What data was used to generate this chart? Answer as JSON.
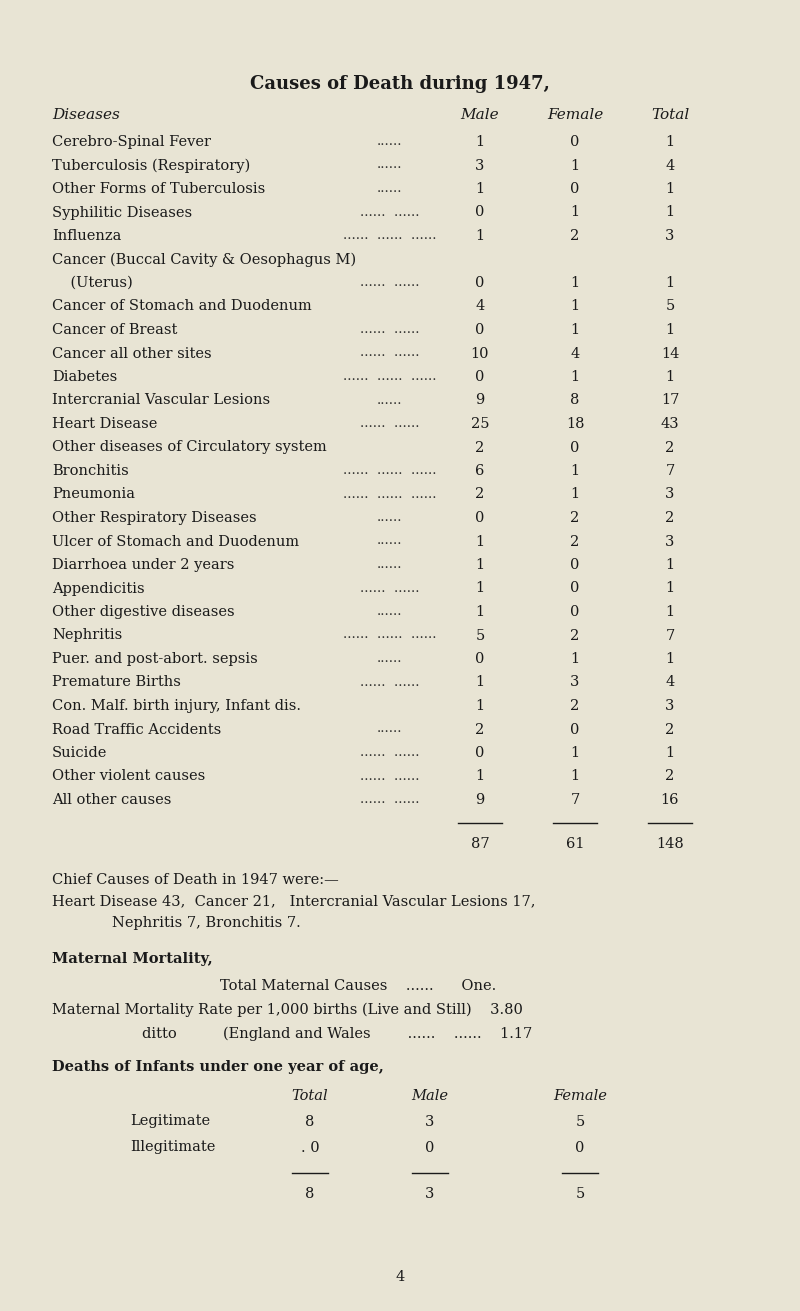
{
  "title": "Causes of Death during 1947,",
  "bg_color": "#e8e4d4",
  "text_color": "#1a1a1a",
  "table_data": [
    {
      "disease": "Cerebro-Spinal Fever",
      "dots": "......",
      "male": "1",
      "female": "0",
      "total": "1"
    },
    {
      "disease": "Tuberculosis (Respiratory)",
      "dots": "......",
      "male": "3",
      "female": "1",
      "total": "4"
    },
    {
      "disease": "Other Forms of Tuberculosis",
      "dots": "......",
      "male": "1",
      "female": "0",
      "total": "1"
    },
    {
      "disease": "Syphilitic Diseases",
      "dots": "......  ......",
      "male": "0",
      "female": "1",
      "total": "1"
    },
    {
      "disease": "Influenza",
      "dots": "......  ......  ......",
      "male": "1",
      "female": "2",
      "total": "3"
    },
    {
      "disease": "Cancer (Buccal Cavity & Oesophagus M)",
      "dots": "",
      "male": "",
      "female": "",
      "total": ""
    },
    {
      "disease": "    (Uterus)",
      "dots": "......  ......",
      "male": "0",
      "female": "1",
      "total": "1"
    },
    {
      "disease": "Cancer of Stomach and Duodenum",
      "dots": "",
      "male": "4",
      "female": "1",
      "total": "5"
    },
    {
      "disease": "Cancer of Breast",
      "dots": "......  ......",
      "male": "0",
      "female": "1",
      "total": "1"
    },
    {
      "disease": "Cancer all other sites",
      "dots": "......  ......",
      "male": "10",
      "female": "4",
      "total": "14"
    },
    {
      "disease": "Diabetes",
      "dots": "......  ......  ......",
      "male": "0",
      "female": "1",
      "total": "1"
    },
    {
      "disease": "Intercranial Vascular Lesions",
      "dots": "......",
      "male": "9",
      "female": "8",
      "total": "17"
    },
    {
      "disease": "Heart Disease",
      "dots": "......  ......",
      "male": "25",
      "female": "18",
      "total": "43"
    },
    {
      "disease": "Other diseases of Circulatory system",
      "dots": "",
      "male": "2",
      "female": "0",
      "total": "2"
    },
    {
      "disease": "Bronchitis",
      "dots": "......  ......  ......",
      "male": "6",
      "female": "1",
      "total": "7"
    },
    {
      "disease": "Pneumonia",
      "dots": "......  ......  ......",
      "male": "2",
      "female": "1",
      "total": "3"
    },
    {
      "disease": "Other Respiratory Diseases",
      "dots": "......",
      "male": "0",
      "female": "2",
      "total": "2"
    },
    {
      "disease": "Ulcer of Stomach and Duodenum",
      "dots": "......",
      "male": "1",
      "female": "2",
      "total": "3"
    },
    {
      "disease": "Diarrhoea under 2 years",
      "dots": "......",
      "male": "1",
      "female": "0",
      "total": "1"
    },
    {
      "disease": "Appendicitis",
      "dots": "......  ......",
      "male": "1",
      "female": "0",
      "total": "1"
    },
    {
      "disease": "Other digestive diseases",
      "dots": "......",
      "male": "1",
      "female": "0",
      "total": "1"
    },
    {
      "disease": "Nephritis",
      "dots": "......  ......  ......",
      "male": "5",
      "female": "2",
      "total": "7"
    },
    {
      "disease": "Puer. and post-abort. sepsis",
      "dots": "......",
      "male": "0",
      "female": "1",
      "total": "1"
    },
    {
      "disease": "Premature Births",
      "dots": "......  ......",
      "male": "1",
      "female": "3",
      "total": "4"
    },
    {
      "disease": "Con. Malf. birth injury, Infant dis.",
      "dots": "",
      "male": "1",
      "female": "2",
      "total": "3"
    },
    {
      "disease": "Road Traffic Accidents",
      "dots": "......",
      "male": "2",
      "female": "0",
      "total": "2"
    },
    {
      "disease": "Suicide",
      "dots": "......  ......",
      "male": "0",
      "female": "1",
      "total": "1"
    },
    {
      "disease": "Other violent causes",
      "dots": "......  ......",
      "male": "1",
      "female": "1",
      "total": "2"
    },
    {
      "disease": "All other causes",
      "dots": "......  ......",
      "male": "9",
      "female": "7",
      "total": "16"
    }
  ],
  "totals": [
    "87",
    "61",
    "148"
  ],
  "infants_data": [
    [
      "Legitimate",
      "8",
      "3",
      "5"
    ],
    [
      "Illegitimate",
      "0",
      "0",
      "0"
    ]
  ],
  "infants_totals": [
    "8",
    "3",
    "5"
  ],
  "page_number": "4"
}
